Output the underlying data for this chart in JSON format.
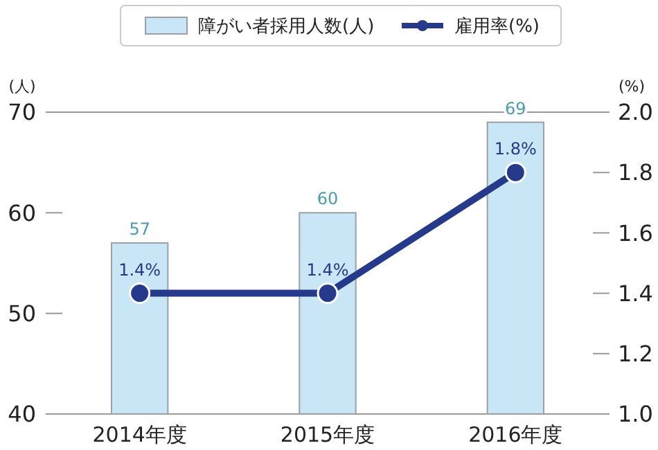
{
  "chart_data": {
    "type": "bar",
    "categories": [
      "2014年度",
      "2015年度",
      "2016年度"
    ],
    "ylabel": "(人)",
    "y2label": "(%)",
    "ylim": [
      40,
      70
    ],
    "yticks": [
      40,
      50,
      60,
      70
    ],
    "y2lim": [
      1.0,
      2.0
    ],
    "y2ticks": [
      {
        "value": 1.0,
        "label": "1.0"
      },
      {
        "value": 1.2,
        "label": "1.2"
      },
      {
        "value": 1.4,
        "label": "1.4"
      },
      {
        "value": 1.6,
        "label": "1.6"
      },
      {
        "value": 1.8,
        "label": "1.8"
      },
      {
        "value": 2.0,
        "label": "2.0"
      }
    ],
    "series": [
      {
        "name": "障がい者採用人数(人)",
        "color": "#c9e6f6",
        "values": [
          57,
          60,
          69
        ],
        "value_labels": [
          "57",
          "60",
          "69"
        ]
      },
      {
        "name": "雇用率(%)",
        "type": "line",
        "axis": "y2",
        "color": "#253a8a",
        "values": [
          1.4,
          1.4,
          1.8
        ],
        "value_labels": [
          "1.4%",
          "1.4%",
          "1.8%"
        ]
      }
    ],
    "marker": "circle",
    "legend": "top",
    "grid": false
  }
}
